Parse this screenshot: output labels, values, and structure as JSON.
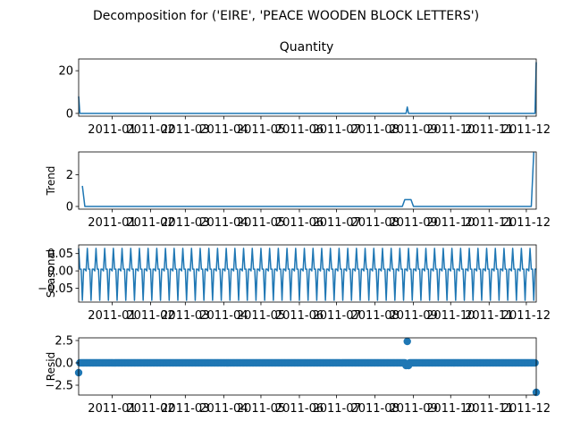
{
  "chart_data": {
    "suptitle": "Decomposition for ('EIRE', 'PEACE WOODEN BLOCK LETTERS')",
    "type": "line",
    "x_tick_labels": [
      "2011-01",
      "2011-02",
      "2011-03",
      "2011-04",
      "2011-05",
      "2011-06",
      "2011-07",
      "2011-08",
      "2011-09",
      "2011-10",
      "2011-11",
      "2011-12"
    ],
    "x_range": [
      "2010-12-05",
      "2011-12-09"
    ],
    "grid": false,
    "line_color": "#1f77b4",
    "panels": [
      {
        "key": "observed",
        "title": "Quantity",
        "ylabel": "",
        "type": "line",
        "ylim": [
          -1.3,
          25.5
        ],
        "yticks": [
          0,
          20
        ],
        "ytick_labels": [
          "0",
          "20"
        ],
        "points": [
          {
            "x": "2010-12-05",
            "y": 8
          },
          {
            "x": "2010-12-06",
            "y": 0
          },
          {
            "x": "2011-08-26",
            "y": 0
          },
          {
            "x": "2011-08-27",
            "y": 3
          },
          {
            "x": "2011-08-28",
            "y": 0
          },
          {
            "x": "2011-12-08",
            "y": 0
          },
          {
            "x": "2011-12-09",
            "y": 24
          }
        ]
      },
      {
        "key": "trend",
        "title": "",
        "ylabel": "Trend",
        "type": "line",
        "ylim": [
          -0.17,
          3.45
        ],
        "yticks": [
          0,
          2
        ],
        "ytick_labels": [
          "0",
          "2"
        ],
        "points": [
          {
            "x": "2010-12-08",
            "y": 1.3
          },
          {
            "x": "2010-12-10",
            "y": 0
          },
          {
            "x": "2011-08-23",
            "y": 0
          },
          {
            "x": "2011-08-25",
            "y": 0.43
          },
          {
            "x": "2011-08-30",
            "y": 0.43
          },
          {
            "x": "2011-09-01",
            "y": 0
          },
          {
            "x": "2011-12-05",
            "y": 0
          },
          {
            "x": "2011-12-07",
            "y": 3.43
          }
        ]
      },
      {
        "key": "seasonal",
        "title": "",
        "ylabel": "Seasonal",
        "type": "line",
        "ylim": [
          -0.09,
          0.075
        ],
        "yticks": [
          0.05,
          0.0,
          -0.05
        ],
        "ytick_labels": [
          "0.05",
          "0.00",
          "−0.05"
        ],
        "period_days": 7,
        "cycle": [
          0.065,
          0.005,
          0.005,
          -0.085,
          0.005,
          0.005,
          0.0
        ]
      },
      {
        "key": "resid",
        "title": "",
        "ylabel": "Resid",
        "type": "scatter",
        "ylim": [
          -3.6,
          2.8
        ],
        "yticks": [
          2.5,
          0.0,
          -2.5
        ],
        "ytick_labels": [
          "2.5",
          "0.0",
          "−2.5"
        ],
        "baseline": 0.0,
        "outliers": [
          {
            "x": "2010-12-05",
            "y": -1.1
          },
          {
            "x": "2011-08-27",
            "y": 2.4
          },
          {
            "x": "2011-08-26",
            "y": -0.3
          },
          {
            "x": "2011-08-28",
            "y": -0.3
          },
          {
            "x": "2011-12-09",
            "y": -3.3
          }
        ]
      }
    ]
  }
}
